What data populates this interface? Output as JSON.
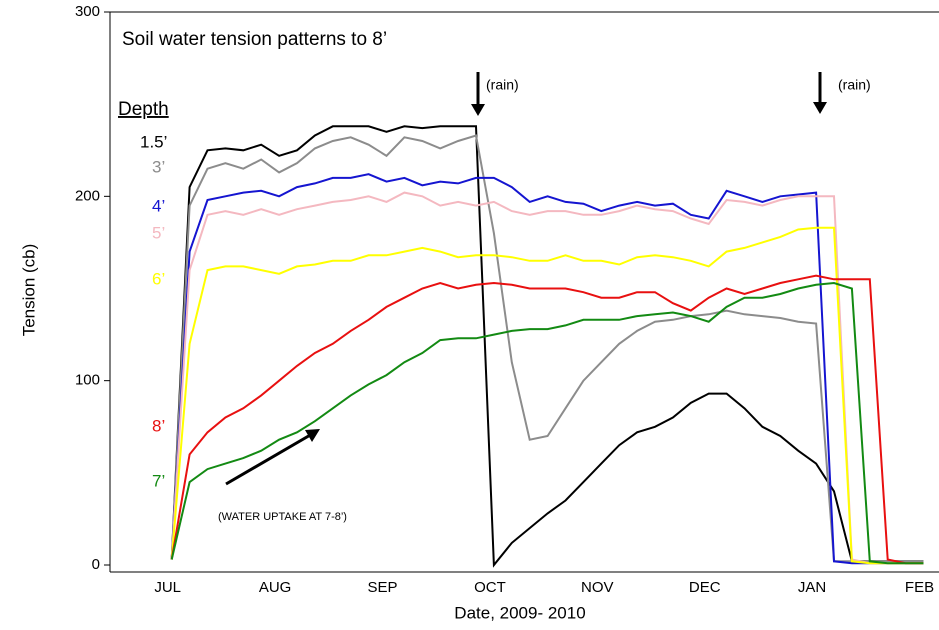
{
  "chart_data": {
    "type": "line",
    "title": "Soil water tension patterns to 8’",
    "x_label": "Date, 2009- 2010",
    "y_label": "Tension (cb)",
    "legend_title": "Depth",
    "annotations": [
      "(rain)",
      "(rain)",
      "(WATER UPTAKE AT 7-8’)"
    ],
    "categories": [
      null,
      null,
      null,
      "JUL",
      null,
      null,
      null,
      null,
      null,
      "AUG",
      null,
      null,
      null,
      null,
      null,
      "SEP",
      null,
      null,
      null,
      null,
      null,
      "OCT",
      null,
      null,
      null,
      null,
      null,
      "NOV",
      null,
      null,
      null,
      null,
      null,
      "DEC",
      null,
      null,
      null,
      null,
      null,
      "JAN",
      null,
      null,
      null,
      null,
      null,
      "FEB"
    ],
    "ylim": [
      0,
      300
    ],
    "yticks": [
      0,
      100,
      200,
      300
    ],
    "grid": false,
    "series": [
      {
        "name": "1.5’",
        "color": "#000000",
        "values": [
          null,
          null,
          null,
          3,
          205,
          225,
          226,
          225,
          228,
          222,
          225,
          233,
          238,
          238,
          238,
          235,
          238,
          237,
          238,
          238,
          238,
          0,
          12,
          20,
          28,
          35,
          45,
          55,
          65,
          72,
          75,
          80,
          88,
          93,
          93,
          85,
          75,
          70,
          62,
          55,
          40,
          2,
          2,
          2,
          2,
          2
        ]
      },
      {
        "name": "3’",
        "color": "#8c8c8c",
        "values": [
          null,
          null,
          null,
          3,
          195,
          215,
          218,
          215,
          220,
          213,
          218,
          226,
          230,
          232,
          228,
          222,
          232,
          230,
          226,
          230,
          233,
          180,
          110,
          68,
          70,
          85,
          100,
          110,
          120,
          127,
          132,
          133,
          135,
          136,
          138,
          136,
          135,
          134,
          132,
          131,
          2,
          2,
          2,
          2,
          2,
          2
        ]
      },
      {
        "name": "4’",
        "color": "#1515d0",
        "values": [
          null,
          null,
          null,
          3,
          170,
          198,
          200,
          202,
          203,
          200,
          205,
          207,
          210,
          210,
          212,
          208,
          210,
          206,
          208,
          207,
          210,
          210,
          205,
          197,
          200,
          197,
          196,
          192,
          195,
          197,
          195,
          196,
          190,
          188,
          203,
          200,
          197,
          200,
          201,
          202,
          2,
          1,
          1,
          1,
          1,
          1
        ]
      },
      {
        "name": "5’",
        "color": "#f4b8c0",
        "values": [
          null,
          null,
          null,
          3,
          160,
          190,
          192,
          190,
          193,
          190,
          193,
          195,
          197,
          198,
          200,
          197,
          202,
          200,
          195,
          197,
          195,
          197,
          192,
          190,
          192,
          192,
          190,
          190,
          192,
          195,
          193,
          192,
          188,
          185,
          198,
          197,
          195,
          198,
          200,
          200,
          200,
          3,
          1,
          1,
          1,
          1
        ]
      },
      {
        "name": "6’",
        "color": "#ffff00",
        "values": [
          null,
          null,
          null,
          3,
          120,
          160,
          162,
          162,
          160,
          158,
          162,
          163,
          165,
          165,
          168,
          168,
          170,
          172,
          170,
          167,
          168,
          168,
          167,
          165,
          165,
          168,
          165,
          165,
          163,
          167,
          168,
          167,
          165,
          162,
          170,
          172,
          175,
          178,
          182,
          183,
          183,
          2,
          1,
          1,
          1,
          1
        ]
      },
      {
        "name": "8’",
        "color": "#e81010",
        "values": [
          null,
          null,
          null,
          3,
          60,
          72,
          80,
          85,
          92,
          100,
          108,
          115,
          120,
          127,
          133,
          140,
          145,
          150,
          153,
          150,
          152,
          153,
          152,
          150,
          150,
          150,
          148,
          145,
          145,
          148,
          148,
          142,
          138,
          145,
          150,
          147,
          150,
          153,
          155,
          157,
          155,
          155,
          155,
          3,
          1,
          1
        ]
      },
      {
        "name": "7’",
        "color": "#138a13",
        "values": [
          null,
          null,
          null,
          3,
          45,
          52,
          55,
          58,
          62,
          68,
          72,
          78,
          85,
          92,
          98,
          103,
          110,
          115,
          122,
          123,
          123,
          125,
          127,
          128,
          128,
          130,
          133,
          133,
          133,
          135,
          136,
          137,
          135,
          132,
          140,
          145,
          145,
          147,
          150,
          152,
          153,
          150,
          2,
          1,
          1,
          1
        ]
      }
    ]
  }
}
